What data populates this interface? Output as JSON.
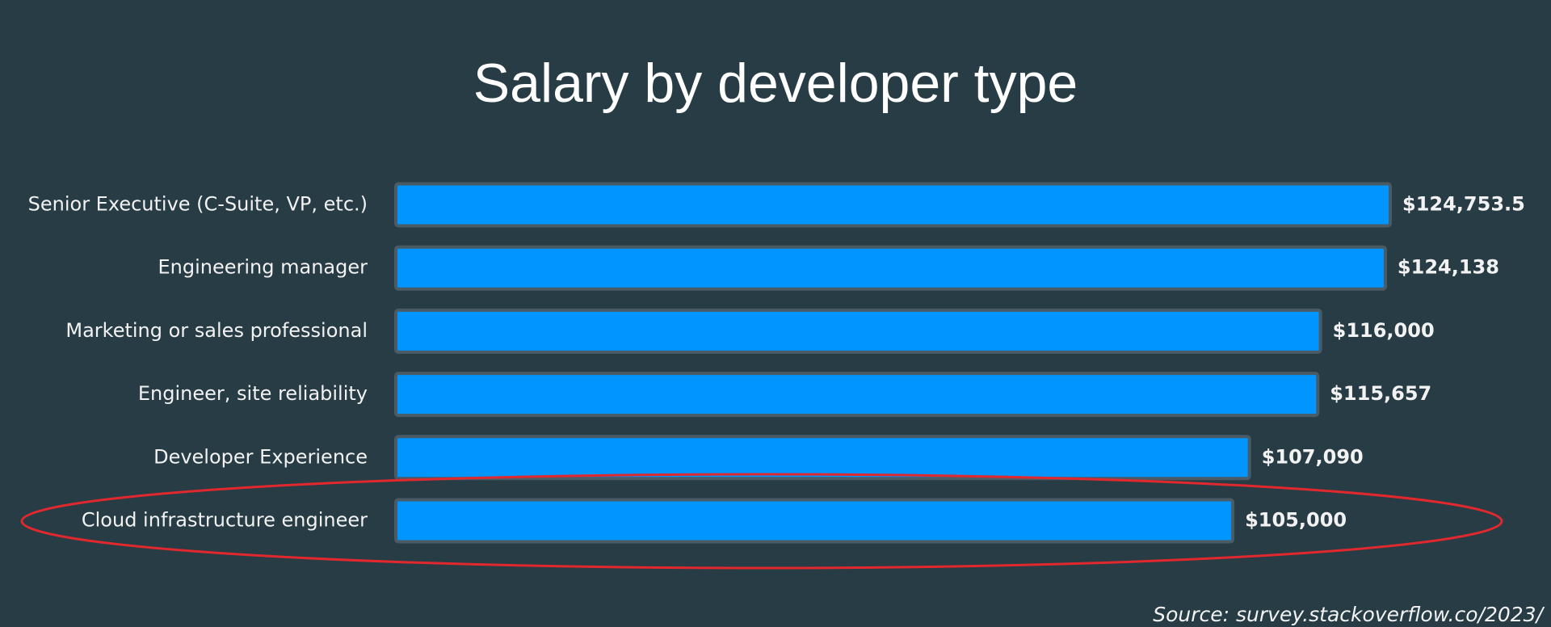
{
  "chart_data": {
    "type": "bar",
    "orientation": "horizontal",
    "title": "Salary by developer type",
    "categories": [
      "Senior Executive (C-Suite, VP, etc.)",
      "Engineering manager",
      "Marketing or sales professional",
      "Engineer, site reliability",
      "Developer Experience",
      "Cloud infrastructure engineer"
    ],
    "values": [
      124753.5,
      124138,
      116000,
      115657,
      107090,
      105000
    ],
    "value_labels": [
      "$124,753.5",
      "$124,138",
      "$116,000",
      "$115,657",
      "$107,090",
      "$105,000"
    ],
    "color": "#0095ff",
    "source": "Source: survey.stackoverflow.co/2023/"
  }
}
